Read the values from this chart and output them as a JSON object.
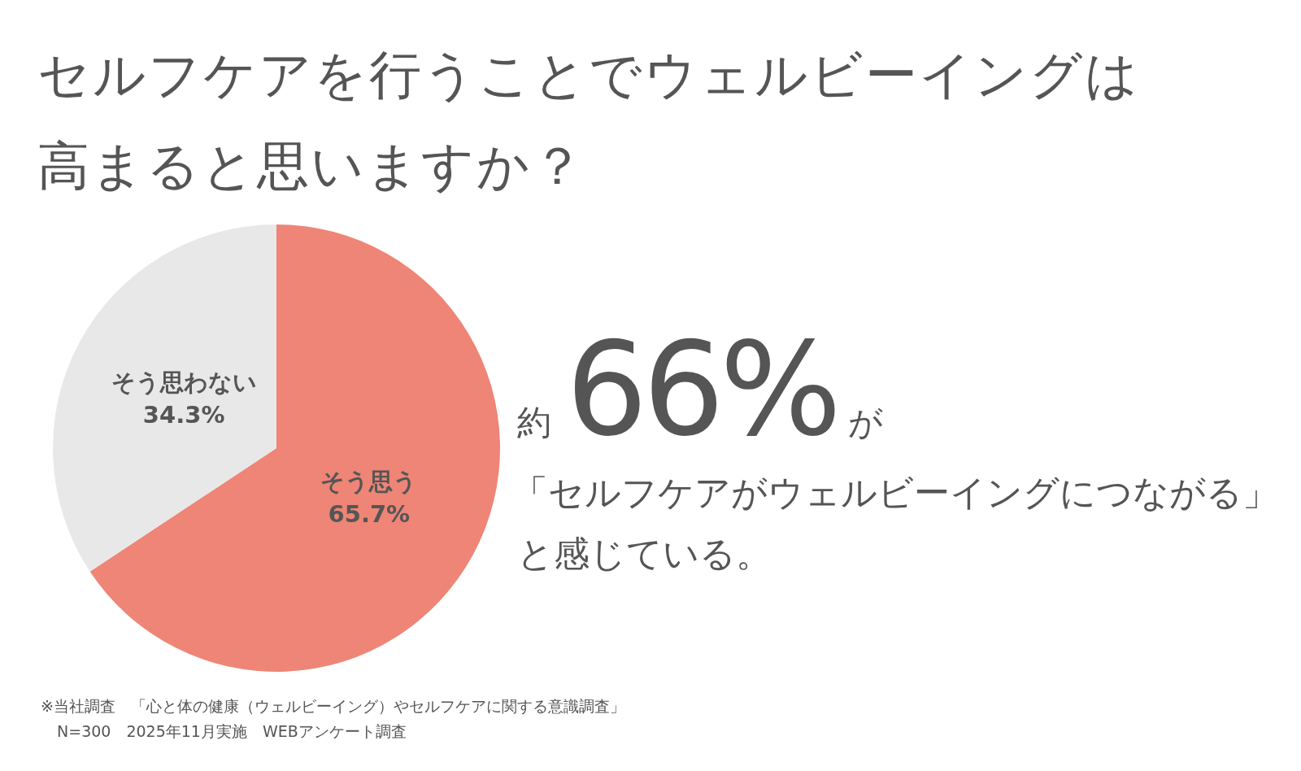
{
  "chart_data": {
    "type": "pie",
    "title": "セルフケアを行うことでウェルビーイングは高まると思いますか？",
    "categories": [
      "そう思う",
      "そう思わない"
    ],
    "values": [
      65.7,
      34.3
    ],
    "colors": [
      "#ee8576",
      "#e8e8e8"
    ],
    "value_labels": [
      "65.7%",
      "34.3%"
    ],
    "annotations": [
      "約",
      "66%",
      "が",
      "「セルフケアがウェルビーイングにつながる」",
      "と感じている。",
      "※当社調査　「心と体の健康（ウェルビーイング）やセルフケアに関する意識調査」",
      "N=300　2025年11月実施　WEBアンケート調査"
    ]
  }
}
